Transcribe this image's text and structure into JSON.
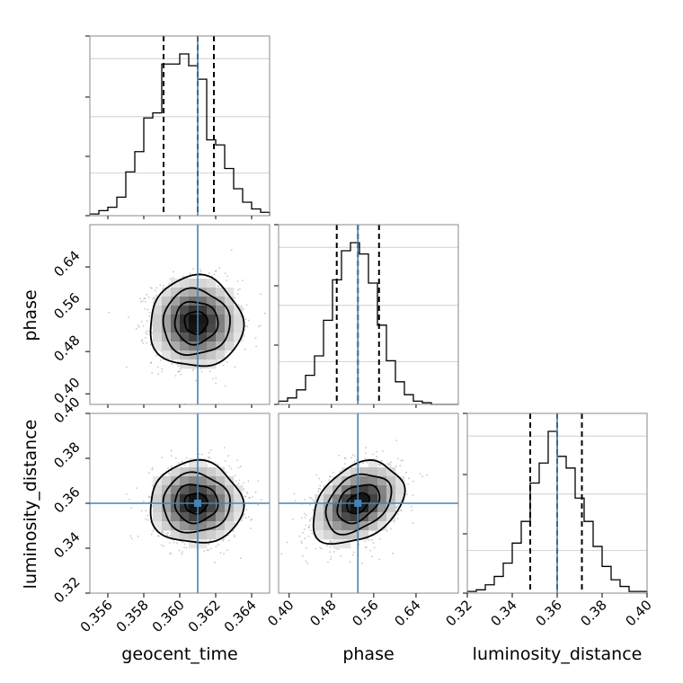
{
  "chart_data": {
    "type": "corner",
    "parameters": [
      "geocent_time",
      "phase",
      "luminosity_distance"
    ],
    "truths": {
      "geocent_time": 0.361,
      "phase": 0.53,
      "luminosity_distance": 0.36
    },
    "colors": {
      "truth": "#4682b4",
      "line": "#000000",
      "grid": "#c8c8c8",
      "frame": "#888888"
    },
    "panels": {
      "geocent_time_hist": {
        "xlim": [
          0.355,
          0.365
        ],
        "quantiles": [
          0.3591,
          0.361,
          0.3619
        ],
        "bin_edges": [
          0.355,
          0.3555,
          0.356,
          0.3565,
          0.357,
          0.3575,
          0.358,
          0.3585,
          0.359,
          0.3595,
          0.36,
          0.3605,
          0.361,
          0.3615,
          0.362,
          0.3625,
          0.363,
          0.3635,
          0.364,
          0.3645,
          0.365
        ],
        "counts": [
          0.01,
          0.03,
          0.05,
          0.11,
          0.26,
          0.38,
          0.58,
          0.61,
          0.9,
          0.9,
          0.96,
          0.89,
          0.81,
          0.45,
          0.42,
          0.28,
          0.16,
          0.08,
          0.04,
          0.02
        ]
      },
      "phase_hist": {
        "xlim": [
          0.38,
          0.72
        ],
        "quantiles": [
          0.49,
          0.53,
          0.57
        ],
        "bin_edges": [
          0.38,
          0.397,
          0.414,
          0.431,
          0.448,
          0.465,
          0.482,
          0.499,
          0.516,
          0.533,
          0.55,
          0.567,
          0.584,
          0.601,
          0.618,
          0.635,
          0.652,
          0.669,
          0.686,
          0.703,
          0.72
        ],
        "counts": [
          0.02,
          0.04,
          0.09,
          0.18,
          0.3,
          0.52,
          0.77,
          0.95,
          1.0,
          0.93,
          0.75,
          0.49,
          0.27,
          0.14,
          0.06,
          0.02,
          0.01,
          0.0,
          0.0,
          0.0
        ]
      },
      "luminosity_distance_hist": {
        "xlim": [
          0.32,
          0.4
        ],
        "quantiles": [
          0.348,
          0.36,
          0.371
        ],
        "bin_edges": [
          0.32,
          0.324,
          0.328,
          0.332,
          0.336,
          0.34,
          0.344,
          0.348,
          0.352,
          0.356,
          0.36,
          0.364,
          0.368,
          0.372,
          0.376,
          0.38,
          0.384,
          0.388,
          0.392,
          0.396,
          0.4
        ],
        "counts": [
          0.01,
          0.02,
          0.05,
          0.1,
          0.18,
          0.3,
          0.43,
          0.66,
          0.78,
          0.97,
          0.82,
          0.75,
          0.57,
          0.43,
          0.28,
          0.16,
          0.08,
          0.04,
          0.01,
          0.01
        ]
      },
      "phase_vs_geocent_time": {
        "xlim": [
          0.355,
          0.365
        ],
        "ylim": [
          0.38,
          0.72
        ],
        "center": [
          0.3609,
          0.535
        ],
        "sigma": [
          0.0012,
          0.04
        ],
        "correlation": 0.0
      },
      "luminosity_distance_vs_geocent_time": {
        "xlim": [
          0.355,
          0.365
        ],
        "ylim": [
          0.32,
          0.4
        ],
        "center": [
          0.3609,
          0.36
        ],
        "sigma": [
          0.0012,
          0.0085
        ],
        "correlation": 0.0
      },
      "luminosity_distance_vs_phase": {
        "xlim": [
          0.38,
          0.72
        ],
        "ylim": [
          0.32,
          0.4
        ],
        "center": [
          0.53,
          0.36
        ],
        "sigma": [
          0.04,
          0.0085
        ],
        "correlation": 0.35
      }
    },
    "ticks": {
      "geocent_time": [
        "0.356",
        "0.358",
        "0.360",
        "0.362",
        "0.364"
      ],
      "phase": [
        "0.40",
        "0.48",
        "0.56",
        "0.64"
      ],
      "luminosity_distance": [
        "0.32",
        "0.34",
        "0.36",
        "0.38",
        "0.40"
      ]
    },
    "xlabels": [
      "geocent_time",
      "phase",
      "luminosity_distance"
    ],
    "ylabels": [
      "phase",
      "luminosity_distance"
    ]
  }
}
